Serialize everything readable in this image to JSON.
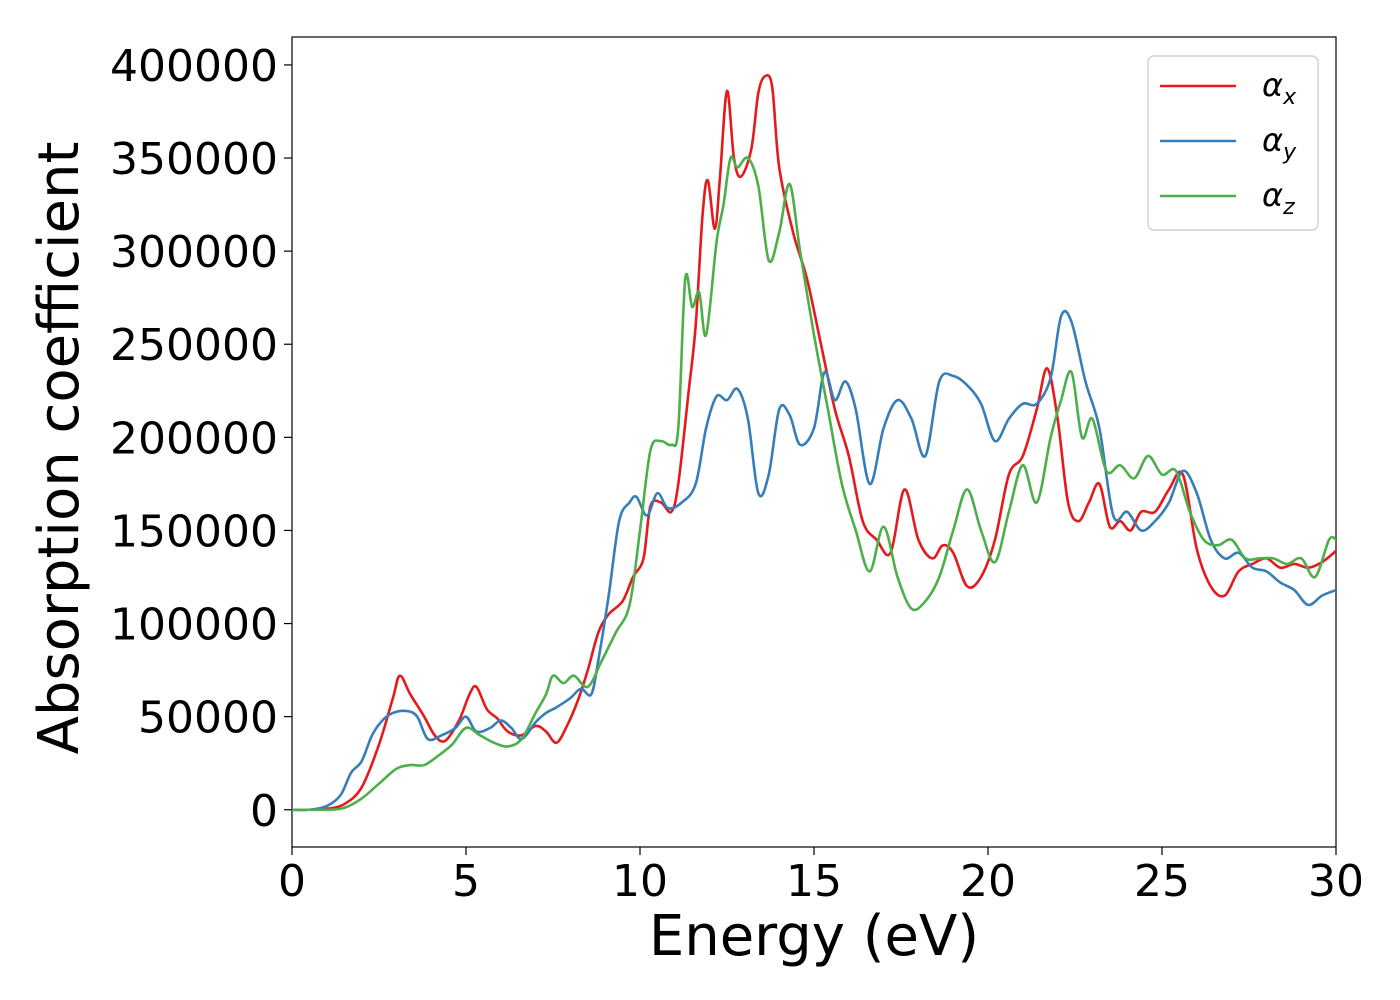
{
  "chart_data": {
    "type": "line",
    "title": "",
    "xlabel": "Energy (eV)",
    "ylabel": "Absorption coefficient",
    "xlim": [
      0,
      30
    ],
    "ylim": [
      -20000,
      415000
    ],
    "xticks": [
      0,
      5,
      10,
      15,
      20,
      25,
      30
    ],
    "yticks": [
      0,
      50000,
      100000,
      150000,
      200000,
      250000,
      300000,
      350000,
      400000
    ],
    "grid": false,
    "legend_position": "top-right",
    "series": [
      {
        "name": "αx",
        "legend_base": "α",
        "legend_sub": "x",
        "color": "#e41a1c",
        "points": [
          [
            0,
            0
          ],
          [
            0.5,
            0
          ],
          [
            1.0,
            500
          ],
          [
            1.5,
            3000
          ],
          [
            2.0,
            12000
          ],
          [
            2.5,
            35000
          ],
          [
            2.9,
            60000
          ],
          [
            3.1,
            72000
          ],
          [
            3.4,
            62000
          ],
          [
            3.8,
            50000
          ],
          [
            4.1,
            40000
          ],
          [
            4.4,
            37000
          ],
          [
            4.8,
            48000
          ],
          [
            5.1,
            62000
          ],
          [
            5.3,
            66000
          ],
          [
            5.6,
            54000
          ],
          [
            5.9,
            49000
          ],
          [
            6.2,
            42000
          ],
          [
            6.6,
            40000
          ],
          [
            7.0,
            45000
          ],
          [
            7.3,
            42000
          ],
          [
            7.6,
            36000
          ],
          [
            7.9,
            45000
          ],
          [
            8.2,
            58000
          ],
          [
            8.5,
            75000
          ],
          [
            8.8,
            95000
          ],
          [
            9.1,
            105000
          ],
          [
            9.5,
            112000
          ],
          [
            9.8,
            125000
          ],
          [
            10.1,
            135000
          ],
          [
            10.3,
            163000
          ],
          [
            10.6,
            165000
          ],
          [
            10.9,
            160000
          ],
          [
            11.1,
            175000
          ],
          [
            11.4,
            225000
          ],
          [
            11.6,
            260000
          ],
          [
            11.8,
            320000
          ],
          [
            11.95,
            338000
          ],
          [
            12.15,
            312000
          ],
          [
            12.3,
            340000
          ],
          [
            12.5,
            386000
          ],
          [
            12.7,
            350000
          ],
          [
            12.9,
            340000
          ],
          [
            13.2,
            355000
          ],
          [
            13.4,
            385000
          ],
          [
            13.6,
            394000
          ],
          [
            13.8,
            388000
          ],
          [
            14.0,
            345000
          ],
          [
            14.4,
            310000
          ],
          [
            14.8,
            285000
          ],
          [
            15.2,
            250000
          ],
          [
            15.6,
            215000
          ],
          [
            16.0,
            190000
          ],
          [
            16.4,
            155000
          ],
          [
            16.8,
            145000
          ],
          [
            17.2,
            138000
          ],
          [
            17.6,
            172000
          ],
          [
            18.0,
            145000
          ],
          [
            18.4,
            135000
          ],
          [
            18.7,
            142000
          ],
          [
            19.0,
            138000
          ],
          [
            19.4,
            120000
          ],
          [
            19.8,
            125000
          ],
          [
            20.2,
            145000
          ],
          [
            20.6,
            180000
          ],
          [
            21.0,
            190000
          ],
          [
            21.4,
            215000
          ],
          [
            21.7,
            237000
          ],
          [
            22.0,
            210000
          ],
          [
            22.3,
            165000
          ],
          [
            22.6,
            155000
          ],
          [
            22.9,
            165000
          ],
          [
            23.2,
            175000
          ],
          [
            23.5,
            152000
          ],
          [
            23.8,
            155000
          ],
          [
            24.1,
            150000
          ],
          [
            24.4,
            160000
          ],
          [
            24.8,
            160000
          ],
          [
            25.2,
            172000
          ],
          [
            25.6,
            180000
          ],
          [
            26.0,
            140000
          ],
          [
            26.4,
            120000
          ],
          [
            26.8,
            115000
          ],
          [
            27.2,
            128000
          ],
          [
            27.6,
            132000
          ],
          [
            28.0,
            135000
          ],
          [
            28.4,
            130000
          ],
          [
            28.8,
            132000
          ],
          [
            29.2,
            130000
          ],
          [
            29.6,
            133000
          ],
          [
            30.0,
            139000
          ]
        ]
      },
      {
        "name": "αy",
        "legend_base": "α",
        "legend_sub": "y",
        "color": "#377eb8",
        "points": [
          [
            0,
            0
          ],
          [
            0.5,
            0
          ],
          [
            1.0,
            2000
          ],
          [
            1.4,
            8000
          ],
          [
            1.7,
            20000
          ],
          [
            2.0,
            26000
          ],
          [
            2.3,
            40000
          ],
          [
            2.6,
            48000
          ],
          [
            2.9,
            52000
          ],
          [
            3.3,
            53000
          ],
          [
            3.6,
            50000
          ],
          [
            3.9,
            38000
          ],
          [
            4.3,
            40000
          ],
          [
            4.7,
            44000
          ],
          [
            5.0,
            50000
          ],
          [
            5.3,
            42000
          ],
          [
            5.7,
            44000
          ],
          [
            6.0,
            48000
          ],
          [
            6.3,
            44000
          ],
          [
            6.6,
            38000
          ],
          [
            7.0,
            47000
          ],
          [
            7.3,
            52000
          ],
          [
            7.6,
            55000
          ],
          [
            8.0,
            60000
          ],
          [
            8.3,
            65000
          ],
          [
            8.6,
            62000
          ],
          [
            8.8,
            80000
          ],
          [
            9.1,
            115000
          ],
          [
            9.4,
            155000
          ],
          [
            9.7,
            165000
          ],
          [
            9.9,
            168000
          ],
          [
            10.2,
            158000
          ],
          [
            10.5,
            170000
          ],
          [
            10.8,
            162000
          ],
          [
            11.2,
            165000
          ],
          [
            11.6,
            175000
          ],
          [
            11.9,
            205000
          ],
          [
            12.2,
            222000
          ],
          [
            12.5,
            220000
          ],
          [
            12.8,
            226000
          ],
          [
            13.1,
            210000
          ],
          [
            13.4,
            170000
          ],
          [
            13.7,
            180000
          ],
          [
            14.0,
            215000
          ],
          [
            14.3,
            212000
          ],
          [
            14.6,
            196000
          ],
          [
            15.0,
            205000
          ],
          [
            15.3,
            235000
          ],
          [
            15.6,
            220000
          ],
          [
            15.9,
            230000
          ],
          [
            16.2,
            215000
          ],
          [
            16.6,
            175000
          ],
          [
            17.0,
            205000
          ],
          [
            17.4,
            220000
          ],
          [
            17.8,
            210000
          ],
          [
            18.2,
            190000
          ],
          [
            18.6,
            230000
          ],
          [
            19.0,
            233000
          ],
          [
            19.4,
            228000
          ],
          [
            19.8,
            218000
          ],
          [
            20.2,
            198000
          ],
          [
            20.6,
            210000
          ],
          [
            21.0,
            218000
          ],
          [
            21.4,
            218000
          ],
          [
            21.8,
            232000
          ],
          [
            22.1,
            265000
          ],
          [
            22.4,
            262000
          ],
          [
            22.8,
            230000
          ],
          [
            23.2,
            205000
          ],
          [
            23.6,
            158000
          ],
          [
            24.0,
            160000
          ],
          [
            24.4,
            150000
          ],
          [
            24.8,
            155000
          ],
          [
            25.2,
            165000
          ],
          [
            25.6,
            182000
          ],
          [
            26.0,
            170000
          ],
          [
            26.4,
            145000
          ],
          [
            26.8,
            135000
          ],
          [
            27.2,
            138000
          ],
          [
            27.6,
            130000
          ],
          [
            28.0,
            128000
          ],
          [
            28.4,
            122000
          ],
          [
            28.8,
            118000
          ],
          [
            29.2,
            110000
          ],
          [
            29.6,
            115000
          ],
          [
            30.0,
            118000
          ]
        ]
      },
      {
        "name": "αz",
        "legend_base": "α",
        "legend_sub": "z",
        "color": "#4daf4a",
        "points": [
          [
            0,
            0
          ],
          [
            0.5,
            0
          ],
          [
            1.0,
            0
          ],
          [
            1.5,
            1000
          ],
          [
            2.0,
            6000
          ],
          [
            2.5,
            14000
          ],
          [
            3.0,
            22000
          ],
          [
            3.4,
            24000
          ],
          [
            3.8,
            24000
          ],
          [
            4.2,
            29000
          ],
          [
            4.6,
            35000
          ],
          [
            5.0,
            44000
          ],
          [
            5.4,
            40000
          ],
          [
            5.8,
            36000
          ],
          [
            6.2,
            34000
          ],
          [
            6.6,
            38000
          ],
          [
            7.0,
            52000
          ],
          [
            7.3,
            62000
          ],
          [
            7.5,
            72000
          ],
          [
            7.8,
            68000
          ],
          [
            8.1,
            72000
          ],
          [
            8.5,
            66000
          ],
          [
            8.9,
            80000
          ],
          [
            9.3,
            95000
          ],
          [
            9.7,
            110000
          ],
          [
            10.0,
            150000
          ],
          [
            10.3,
            193000
          ],
          [
            10.6,
            198000
          ],
          [
            10.9,
            196000
          ],
          [
            11.1,
            205000
          ],
          [
            11.3,
            285000
          ],
          [
            11.5,
            270000
          ],
          [
            11.7,
            278000
          ],
          [
            11.9,
            255000
          ],
          [
            12.2,
            305000
          ],
          [
            12.4,
            325000
          ],
          [
            12.6,
            350000
          ],
          [
            12.8,
            345000
          ],
          [
            13.1,
            350000
          ],
          [
            13.4,
            335000
          ],
          [
            13.7,
            295000
          ],
          [
            14.0,
            310000
          ],
          [
            14.3,
            336000
          ],
          [
            14.6,
            300000
          ],
          [
            15.0,
            255000
          ],
          [
            15.4,
            215000
          ],
          [
            15.8,
            175000
          ],
          [
            16.2,
            150000
          ],
          [
            16.6,
            128000
          ],
          [
            17.0,
            152000
          ],
          [
            17.4,
            125000
          ],
          [
            17.8,
            108000
          ],
          [
            18.2,
            112000
          ],
          [
            18.6,
            125000
          ],
          [
            19.0,
            150000
          ],
          [
            19.4,
            172000
          ],
          [
            19.8,
            150000
          ],
          [
            20.2,
            133000
          ],
          [
            20.6,
            160000
          ],
          [
            21.0,
            185000
          ],
          [
            21.4,
            165000
          ],
          [
            21.8,
            200000
          ],
          [
            22.1,
            220000
          ],
          [
            22.4,
            235000
          ],
          [
            22.7,
            200000
          ],
          [
            23.0,
            210000
          ],
          [
            23.4,
            182000
          ],
          [
            23.8,
            185000
          ],
          [
            24.2,
            178000
          ],
          [
            24.6,
            190000
          ],
          [
            25.0,
            180000
          ],
          [
            25.4,
            182000
          ],
          [
            25.8,
            160000
          ],
          [
            26.2,
            145000
          ],
          [
            26.6,
            142000
          ],
          [
            27.0,
            145000
          ],
          [
            27.4,
            135000
          ],
          [
            27.8,
            135000
          ],
          [
            28.2,
            135000
          ],
          [
            28.6,
            132000
          ],
          [
            29.0,
            135000
          ],
          [
            29.4,
            125000
          ],
          [
            29.8,
            145000
          ],
          [
            30.0,
            145000
          ]
        ]
      }
    ]
  }
}
